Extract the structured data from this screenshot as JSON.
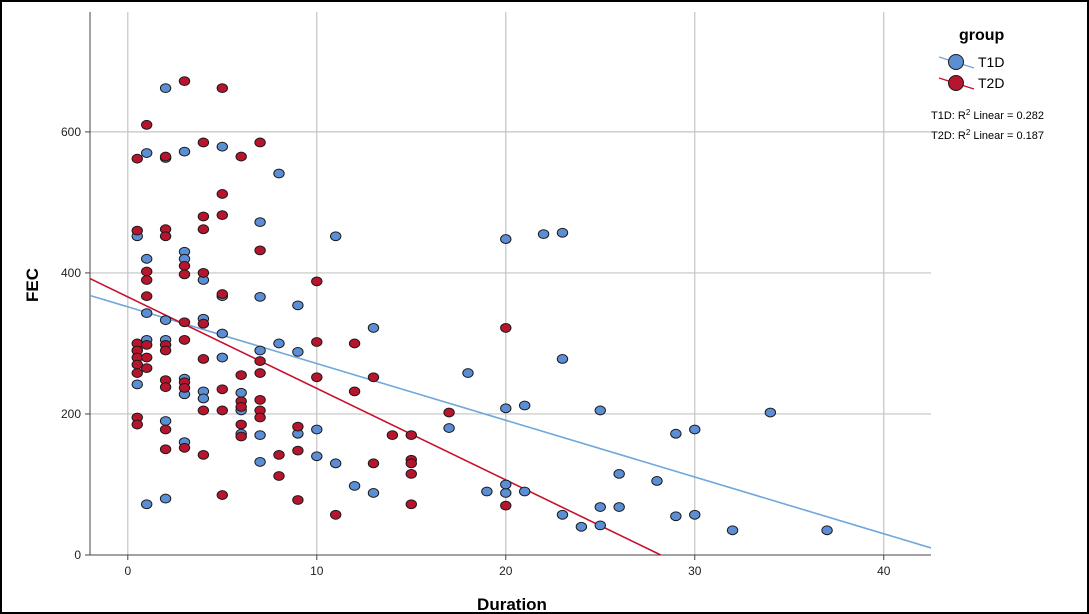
{
  "chart_data": {
    "type": "scatter",
    "xlabel": "Duration",
    "ylabel": "FEC",
    "xlim": [
      -2,
      42.5
    ],
    "ylim": [
      0,
      770
    ],
    "xticks": [
      0,
      10,
      20,
      30,
      40
    ],
    "yticks": [
      0,
      200,
      400,
      600
    ],
    "grid": true,
    "legend": {
      "title": "group",
      "placement": "top-right",
      "r2_lines": [
        {
          "prefix": "T1D: R",
          "sup": "2",
          "suffix": " Linear = 0.282"
        },
        {
          "prefix": "T2D: R",
          "sup": "2",
          "suffix": " Linear = 0.187"
        }
      ]
    },
    "series": [
      {
        "name": "T1D",
        "color": "#5b8ed4",
        "line_color": "#6fa8dc",
        "fit_line": {
          "x": [
            -2,
            42.5
          ],
          "y": [
            368,
            10
          ]
        },
        "points": [
          [
            2,
            662
          ],
          [
            3,
            572
          ],
          [
            5,
            579
          ],
          [
            2,
            563
          ],
          [
            1,
            570
          ],
          [
            8,
            541
          ],
          [
            0.5,
            452
          ],
          [
            7,
            472
          ],
          [
            11,
            452
          ],
          [
            3,
            430
          ],
          [
            3,
            420
          ],
          [
            1,
            420
          ],
          [
            4,
            390
          ],
          [
            5,
            367
          ],
          [
            7,
            366
          ],
          [
            9,
            354
          ],
          [
            1,
            343
          ],
          [
            4,
            335
          ],
          [
            2,
            333
          ],
          [
            13,
            322
          ],
          [
            5,
            314
          ],
          [
            1,
            305
          ],
          [
            2,
            305
          ],
          [
            8,
            300
          ],
          [
            7,
            290
          ],
          [
            9,
            288
          ],
          [
            0.5,
            290
          ],
          [
            5,
            280
          ],
          [
            18,
            258
          ],
          [
            3,
            250
          ],
          [
            0.5,
            242
          ],
          [
            4,
            232
          ],
          [
            6,
            230
          ],
          [
            3,
            228
          ],
          [
            4,
            222
          ],
          [
            2,
            190
          ],
          [
            6,
            205
          ],
          [
            20,
            208
          ],
          [
            21,
            212
          ],
          [
            25,
            205
          ],
          [
            17,
            180
          ],
          [
            6,
            172
          ],
          [
            10,
            178
          ],
          [
            9,
            172
          ],
          [
            29,
            172
          ],
          [
            30,
            178
          ],
          [
            34,
            202
          ],
          [
            7,
            170
          ],
          [
            3,
            160
          ],
          [
            10,
            140
          ],
          [
            11,
            130
          ],
          [
            7,
            132
          ],
          [
            12,
            98
          ],
          [
            13,
            88
          ],
          [
            19,
            90
          ],
          [
            20,
            88
          ],
          [
            20,
            100
          ],
          [
            21,
            90
          ],
          [
            26,
            115
          ],
          [
            28,
            105
          ],
          [
            1,
            72
          ],
          [
            2,
            80
          ],
          [
            23,
            57
          ],
          [
            24,
            40
          ],
          [
            25,
            42
          ],
          [
            25,
            68
          ],
          [
            26,
            68
          ],
          [
            29,
            55
          ],
          [
            30,
            57
          ],
          [
            32,
            35
          ],
          [
            37,
            35
          ],
          [
            20,
            448
          ],
          [
            22,
            455
          ],
          [
            23,
            457
          ],
          [
            23,
            278
          ]
        ]
      },
      {
        "name": "T2D",
        "color": "#b7142e",
        "line_color": "#c8102e",
        "fit_line": {
          "x": [
            -2,
            28.2
          ],
          "y": [
            392,
            0
          ]
        },
        "points": [
          [
            3,
            672
          ],
          [
            5,
            662
          ],
          [
            1,
            610
          ],
          [
            4,
            585
          ],
          [
            7,
            585
          ],
          [
            2,
            565
          ],
          [
            6,
            565
          ],
          [
            0.5,
            562
          ],
          [
            5,
            512
          ],
          [
            4,
            480
          ],
          [
            5,
            482
          ],
          [
            0.5,
            460
          ],
          [
            2,
            462
          ],
          [
            4,
            462
          ],
          [
            2,
            452
          ],
          [
            7,
            432
          ],
          [
            3,
            410
          ],
          [
            1,
            402
          ],
          [
            4,
            400
          ],
          [
            3,
            398
          ],
          [
            1,
            390
          ],
          [
            10,
            388
          ],
          [
            5,
            370
          ],
          [
            1,
            367
          ],
          [
            3,
            330
          ],
          [
            4,
            328
          ],
          [
            0.5,
            300
          ],
          [
            2,
            298
          ],
          [
            1,
            298
          ],
          [
            10,
            302
          ],
          [
            12,
            300
          ],
          [
            0.5,
            290
          ],
          [
            2,
            290
          ],
          [
            3,
            305
          ],
          [
            0.5,
            280
          ],
          [
            1,
            280
          ],
          [
            4,
            278
          ],
          [
            7,
            275
          ],
          [
            0.5,
            270
          ],
          [
            1,
            265
          ],
          [
            7,
            258
          ],
          [
            6,
            255
          ],
          [
            0.5,
            258
          ],
          [
            13,
            252
          ],
          [
            10,
            252
          ],
          [
            2,
            248
          ],
          [
            3,
            245
          ],
          [
            3,
            237
          ],
          [
            2,
            238
          ],
          [
            5,
            235
          ],
          [
            12,
            232
          ],
          [
            7,
            220
          ],
          [
            6,
            218
          ],
          [
            6,
            210
          ],
          [
            4,
            205
          ],
          [
            5,
            205
          ],
          [
            7,
            205
          ],
          [
            17,
            202
          ],
          [
            20,
            322
          ],
          [
            7,
            195
          ],
          [
            0.5,
            195
          ],
          [
            0.5,
            185
          ],
          [
            6,
            185
          ],
          [
            9,
            182
          ],
          [
            2,
            178
          ],
          [
            14,
            170
          ],
          [
            15,
            170
          ],
          [
            6,
            168
          ],
          [
            2,
            150
          ],
          [
            3,
            152
          ],
          [
            4,
            142
          ],
          [
            8,
            142
          ],
          [
            9,
            148
          ],
          [
            15,
            135
          ],
          [
            15,
            130
          ],
          [
            13,
            130
          ],
          [
            15,
            115
          ],
          [
            8,
            112
          ],
          [
            5,
            85
          ],
          [
            9,
            78
          ],
          [
            11,
            57
          ],
          [
            15,
            72
          ],
          [
            20,
            70
          ]
        ]
      }
    ]
  }
}
